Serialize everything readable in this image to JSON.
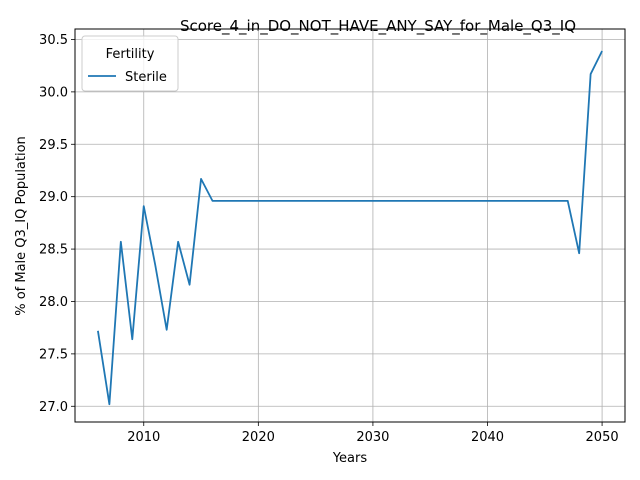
{
  "chart_data": {
    "type": "line",
    "title": "Score_4_in_DO_NOT_HAVE_ANY_SAY_for_Male_Q3_IQ",
    "xlabel": "Years",
    "ylabel": "% of Male Q3_IQ Population",
    "xlim": [
      2004,
      2052
    ],
    "ylim": [
      26.85,
      30.6
    ],
    "xticks": [
      2010,
      2020,
      2030,
      2040,
      2050
    ],
    "yticks": [
      27.0,
      27.5,
      28.0,
      28.5,
      29.0,
      29.5,
      30.0,
      30.5
    ],
    "ytick_labels": [
      "27.0",
      "27.5",
      "28.0",
      "28.5",
      "29.0",
      "29.5",
      "30.0",
      "30.5"
    ],
    "grid": true,
    "legend": {
      "title": "Fertility",
      "placement": "top-left"
    },
    "series": [
      {
        "name": "Sterile",
        "color": "#1f77b4",
        "x": [
          2006,
          2007,
          2008,
          2009,
          2010,
          2011,
          2012,
          2013,
          2014,
          2015,
          2016,
          2047,
          2048,
          2049,
          2050
        ],
        "y": [
          27.72,
          27.02,
          28.57,
          27.64,
          28.91,
          28.35,
          27.73,
          28.57,
          28.16,
          29.17,
          28.96,
          28.96,
          28.46,
          30.17,
          30.39
        ]
      }
    ]
  }
}
